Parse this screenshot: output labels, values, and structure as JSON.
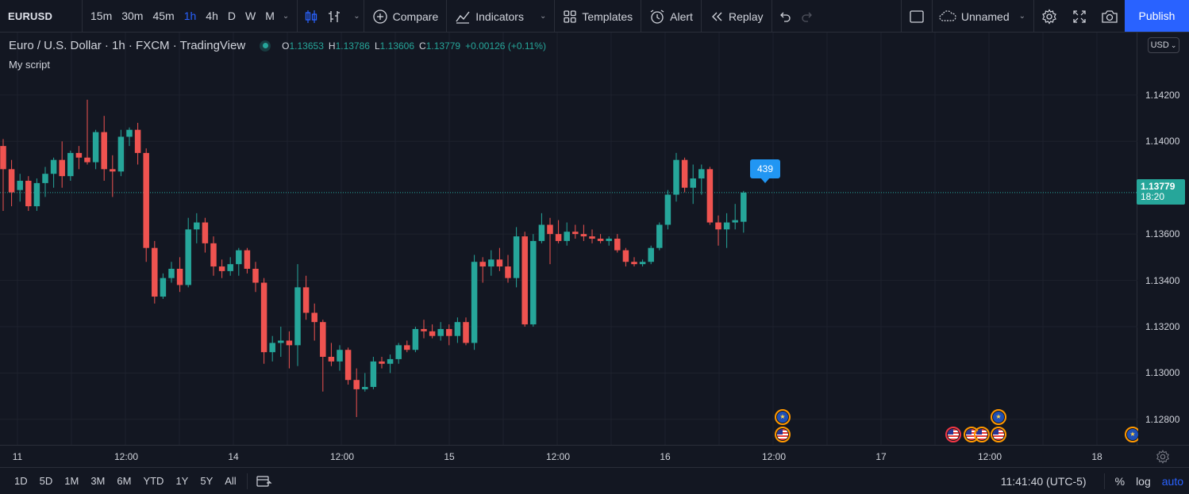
{
  "toolbar": {
    "symbol": "EURUSD",
    "intervals": [
      "15m",
      "30m",
      "45m",
      "1h",
      "4h",
      "D",
      "W",
      "M"
    ],
    "active_interval": "1h",
    "compare_label": "Compare",
    "indicators_label": "Indicators",
    "templates_label": "Templates",
    "alert_label": "Alert",
    "replay_label": "Replay",
    "layout_name": "Unnamed",
    "publish_label": "Publish"
  },
  "legend": {
    "title": "Euro / U.S. Dollar · 1h · FXCM · TradingView",
    "open_key": "O",
    "open": "1.13653",
    "high_key": "H",
    "high": "1.13786",
    "low_key": "L",
    "low": "1.13606",
    "close_key": "C",
    "close": "1.13779",
    "change": "+0.00126 (+0.11%)",
    "script_label": "My script"
  },
  "price_scale": {
    "currency": "USD",
    "ticks": [
      "1.14200",
      "1.14000",
      "1.13600",
      "1.13400",
      "1.13200",
      "1.13000",
      "1.12800"
    ],
    "last_price": "1.13779",
    "countdown": "18:20"
  },
  "callout_label": "439",
  "time_axis": [
    "11",
    "12:00",
    "14",
    "12:00",
    "15",
    "12:00",
    "16",
    "12:00",
    "17",
    "12:00",
    "18"
  ],
  "bottom_bar": {
    "ranges": [
      "1D",
      "5D",
      "1M",
      "3M",
      "6M",
      "YTD",
      "1Y",
      "5Y",
      "All"
    ],
    "clock": "11:41:40 (UTC-5)",
    "percent_label": "%",
    "log_label": "log",
    "auto_label": "auto"
  },
  "colors": {
    "background": "#131722",
    "up": "#26a69a",
    "down": "#ef5350",
    "accent": "#2962ff",
    "callout": "#2196f3",
    "event_border": "#ff9800"
  },
  "chart_data": {
    "type": "candlestick",
    "symbol": "EURUSD",
    "interval": "1h",
    "ylim": [
      1.1269,
      1.1447
    ],
    "last_price": 1.13779,
    "candles": [
      {
        "o": 1.1398,
        "h": 1.1401,
        "l": 1.137,
        "c": 1.1388
      },
      {
        "o": 1.1388,
        "h": 1.1392,
        "l": 1.1372,
        "c": 1.1378
      },
      {
        "o": 1.1379,
        "h": 1.1386,
        "l": 1.1374,
        "c": 1.1383
      },
      {
        "o": 1.1383,
        "h": 1.1385,
        "l": 1.137,
        "c": 1.1372
      },
      {
        "o": 1.1372,
        "h": 1.1384,
        "l": 1.137,
        "c": 1.1382
      },
      {
        "o": 1.1382,
        "h": 1.1389,
        "l": 1.1376,
        "c": 1.1386
      },
      {
        "o": 1.1386,
        "h": 1.1393,
        "l": 1.138,
        "c": 1.1392
      },
      {
        "o": 1.1392,
        "h": 1.14,
        "l": 1.138,
        "c": 1.1385
      },
      {
        "o": 1.1385,
        "h": 1.1396,
        "l": 1.1383,
        "c": 1.1395
      },
      {
        "o": 1.1395,
        "h": 1.1398,
        "l": 1.1388,
        "c": 1.1393
      },
      {
        "o": 1.1393,
        "h": 1.1418,
        "l": 1.139,
        "c": 1.1391
      },
      {
        "o": 1.1391,
        "h": 1.1405,
        "l": 1.1388,
        "c": 1.1404
      },
      {
        "o": 1.1404,
        "h": 1.1411,
        "l": 1.1383,
        "c": 1.1388
      },
      {
        "o": 1.1388,
        "h": 1.1394,
        "l": 1.1376,
        "c": 1.1387
      },
      {
        "o": 1.1387,
        "h": 1.1405,
        "l": 1.1385,
        "c": 1.1402
      },
      {
        "o": 1.1402,
        "h": 1.1406,
        "l": 1.1398,
        "c": 1.1405
      },
      {
        "o": 1.1405,
        "h": 1.1408,
        "l": 1.139,
        "c": 1.1395
      },
      {
        "o": 1.1395,
        "h": 1.1397,
        "l": 1.1348,
        "c": 1.1354
      },
      {
        "o": 1.1354,
        "h": 1.1357,
        "l": 1.133,
        "c": 1.1333
      },
      {
        "o": 1.1333,
        "h": 1.1343,
        "l": 1.1332,
        "c": 1.1341
      },
      {
        "o": 1.1341,
        "h": 1.1348,
        "l": 1.1339,
        "c": 1.1345
      },
      {
        "o": 1.1345,
        "h": 1.135,
        "l": 1.1335,
        "c": 1.1338
      },
      {
        "o": 1.1338,
        "h": 1.1367,
        "l": 1.1337,
        "c": 1.1362
      },
      {
        "o": 1.1362,
        "h": 1.1369,
        "l": 1.1356,
        "c": 1.1365
      },
      {
        "o": 1.1365,
        "h": 1.1367,
        "l": 1.1352,
        "c": 1.1356
      },
      {
        "o": 1.1356,
        "h": 1.1359,
        "l": 1.1342,
        "c": 1.1346
      },
      {
        "o": 1.1346,
        "h": 1.1349,
        "l": 1.1341,
        "c": 1.1344
      },
      {
        "o": 1.1344,
        "h": 1.135,
        "l": 1.1342,
        "c": 1.1347
      },
      {
        "o": 1.1347,
        "h": 1.1354,
        "l": 1.1342,
        "c": 1.1353
      },
      {
        "o": 1.1353,
        "h": 1.1354,
        "l": 1.1343,
        "c": 1.1345
      },
      {
        "o": 1.1345,
        "h": 1.1348,
        "l": 1.1335,
        "c": 1.1339
      },
      {
        "o": 1.1339,
        "h": 1.1341,
        "l": 1.1304,
        "c": 1.1309
      },
      {
        "o": 1.1309,
        "h": 1.1316,
        "l": 1.1305,
        "c": 1.1313
      },
      {
        "o": 1.1313,
        "h": 1.132,
        "l": 1.1307,
        "c": 1.1314
      },
      {
        "o": 1.1314,
        "h": 1.1318,
        "l": 1.1302,
        "c": 1.1312
      },
      {
        "o": 1.1312,
        "h": 1.1347,
        "l": 1.1303,
        "c": 1.1337
      },
      {
        "o": 1.1337,
        "h": 1.1342,
        "l": 1.1323,
        "c": 1.1326
      },
      {
        "o": 1.1326,
        "h": 1.133,
        "l": 1.1314,
        "c": 1.1322
      },
      {
        "o": 1.1322,
        "h": 1.1323,
        "l": 1.1292,
        "c": 1.1307
      },
      {
        "o": 1.1307,
        "h": 1.1313,
        "l": 1.1303,
        "c": 1.1305
      },
      {
        "o": 1.1305,
        "h": 1.1312,
        "l": 1.1301,
        "c": 1.131
      },
      {
        "o": 1.131,
        "h": 1.1311,
        "l": 1.1295,
        "c": 1.1297
      },
      {
        "o": 1.1297,
        "h": 1.1302,
        "l": 1.1281,
        "c": 1.1293
      },
      {
        "o": 1.1293,
        "h": 1.13,
        "l": 1.1292,
        "c": 1.1294
      },
      {
        "o": 1.1294,
        "h": 1.1307,
        "l": 1.1293,
        "c": 1.1305
      },
      {
        "o": 1.1305,
        "h": 1.1307,
        "l": 1.1302,
        "c": 1.1304
      },
      {
        "o": 1.1304,
        "h": 1.1308,
        "l": 1.13,
        "c": 1.1306
      },
      {
        "o": 1.1306,
        "h": 1.1313,
        "l": 1.1304,
        "c": 1.1312
      },
      {
        "o": 1.1312,
        "h": 1.1314,
        "l": 1.1309,
        "c": 1.131
      },
      {
        "o": 1.131,
        "h": 1.132,
        "l": 1.1309,
        "c": 1.1319
      },
      {
        "o": 1.1319,
        "h": 1.1323,
        "l": 1.1315,
        "c": 1.1318
      },
      {
        "o": 1.1318,
        "h": 1.1321,
        "l": 1.1315,
        "c": 1.1316
      },
      {
        "o": 1.1316,
        "h": 1.1322,
        "l": 1.1314,
        "c": 1.1319
      },
      {
        "o": 1.1319,
        "h": 1.1321,
        "l": 1.1312,
        "c": 1.1316
      },
      {
        "o": 1.1316,
        "h": 1.1324,
        "l": 1.1313,
        "c": 1.1322
      },
      {
        "o": 1.1322,
        "h": 1.1324,
        "l": 1.1312,
        "c": 1.1313
      },
      {
        "o": 1.1313,
        "h": 1.1351,
        "l": 1.131,
        "c": 1.1348
      },
      {
        "o": 1.1348,
        "h": 1.135,
        "l": 1.1339,
        "c": 1.1346
      },
      {
        "o": 1.1346,
        "h": 1.1353,
        "l": 1.1342,
        "c": 1.1349
      },
      {
        "o": 1.1349,
        "h": 1.1354,
        "l": 1.1344,
        "c": 1.1346
      },
      {
        "o": 1.1346,
        "h": 1.1351,
        "l": 1.1339,
        "c": 1.1341
      },
      {
        "o": 1.1341,
        "h": 1.1363,
        "l": 1.1337,
        "c": 1.1359
      },
      {
        "o": 1.1359,
        "h": 1.1361,
        "l": 1.132,
        "c": 1.1321
      },
      {
        "o": 1.1321,
        "h": 1.136,
        "l": 1.132,
        "c": 1.1357
      },
      {
        "o": 1.1357,
        "h": 1.1369,
        "l": 1.1356,
        "c": 1.1364
      },
      {
        "o": 1.1364,
        "h": 1.1367,
        "l": 1.1347,
        "c": 1.136
      },
      {
        "o": 1.136,
        "h": 1.1366,
        "l": 1.1356,
        "c": 1.1357
      },
      {
        "o": 1.1357,
        "h": 1.1365,
        "l": 1.1355,
        "c": 1.1361
      },
      {
        "o": 1.1361,
        "h": 1.1364,
        "l": 1.1358,
        "c": 1.136
      },
      {
        "o": 1.136,
        "h": 1.1364,
        "l": 1.1357,
        "c": 1.1359
      },
      {
        "o": 1.1359,
        "h": 1.1362,
        "l": 1.1356,
        "c": 1.1358
      },
      {
        "o": 1.1358,
        "h": 1.136,
        "l": 1.1356,
        "c": 1.1357
      },
      {
        "o": 1.1357,
        "h": 1.1359,
        "l": 1.1355,
        "c": 1.1358
      },
      {
        "o": 1.1358,
        "h": 1.136,
        "l": 1.1352,
        "c": 1.1353
      },
      {
        "o": 1.1353,
        "h": 1.1354,
        "l": 1.1346,
        "c": 1.1348
      },
      {
        "o": 1.1348,
        "h": 1.135,
        "l": 1.1346,
        "c": 1.1347
      },
      {
        "o": 1.1347,
        "h": 1.1349,
        "l": 1.1346,
        "c": 1.1348
      },
      {
        "o": 1.1348,
        "h": 1.1355,
        "l": 1.1347,
        "c": 1.1354
      },
      {
        "o": 1.1354,
        "h": 1.1365,
        "l": 1.1353,
        "c": 1.1364
      },
      {
        "o": 1.1364,
        "h": 1.1379,
        "l": 1.1362,
        "c": 1.1377
      },
      {
        "o": 1.1377,
        "h": 1.1395,
        "l": 1.1374,
        "c": 1.1392
      },
      {
        "o": 1.1392,
        "h": 1.1393,
        "l": 1.1378,
        "c": 1.138
      },
      {
        "o": 1.138,
        "h": 1.139,
        "l": 1.1373,
        "c": 1.1384
      },
      {
        "o": 1.1384,
        "h": 1.139,
        "l": 1.1377,
        "c": 1.1388
      },
      {
        "o": 1.1388,
        "h": 1.1389,
        "l": 1.1364,
        "c": 1.1365
      },
      {
        "o": 1.1365,
        "h": 1.1368,
        "l": 1.1355,
        "c": 1.1362
      },
      {
        "o": 1.1362,
        "h": 1.1369,
        "l": 1.1354,
        "c": 1.1365
      },
      {
        "o": 1.1365,
        "h": 1.1373,
        "l": 1.1362,
        "c": 1.1366
      },
      {
        "o": 1.13653,
        "h": 1.13786,
        "l": 1.13606,
        "c": 1.13779
      }
    ]
  }
}
